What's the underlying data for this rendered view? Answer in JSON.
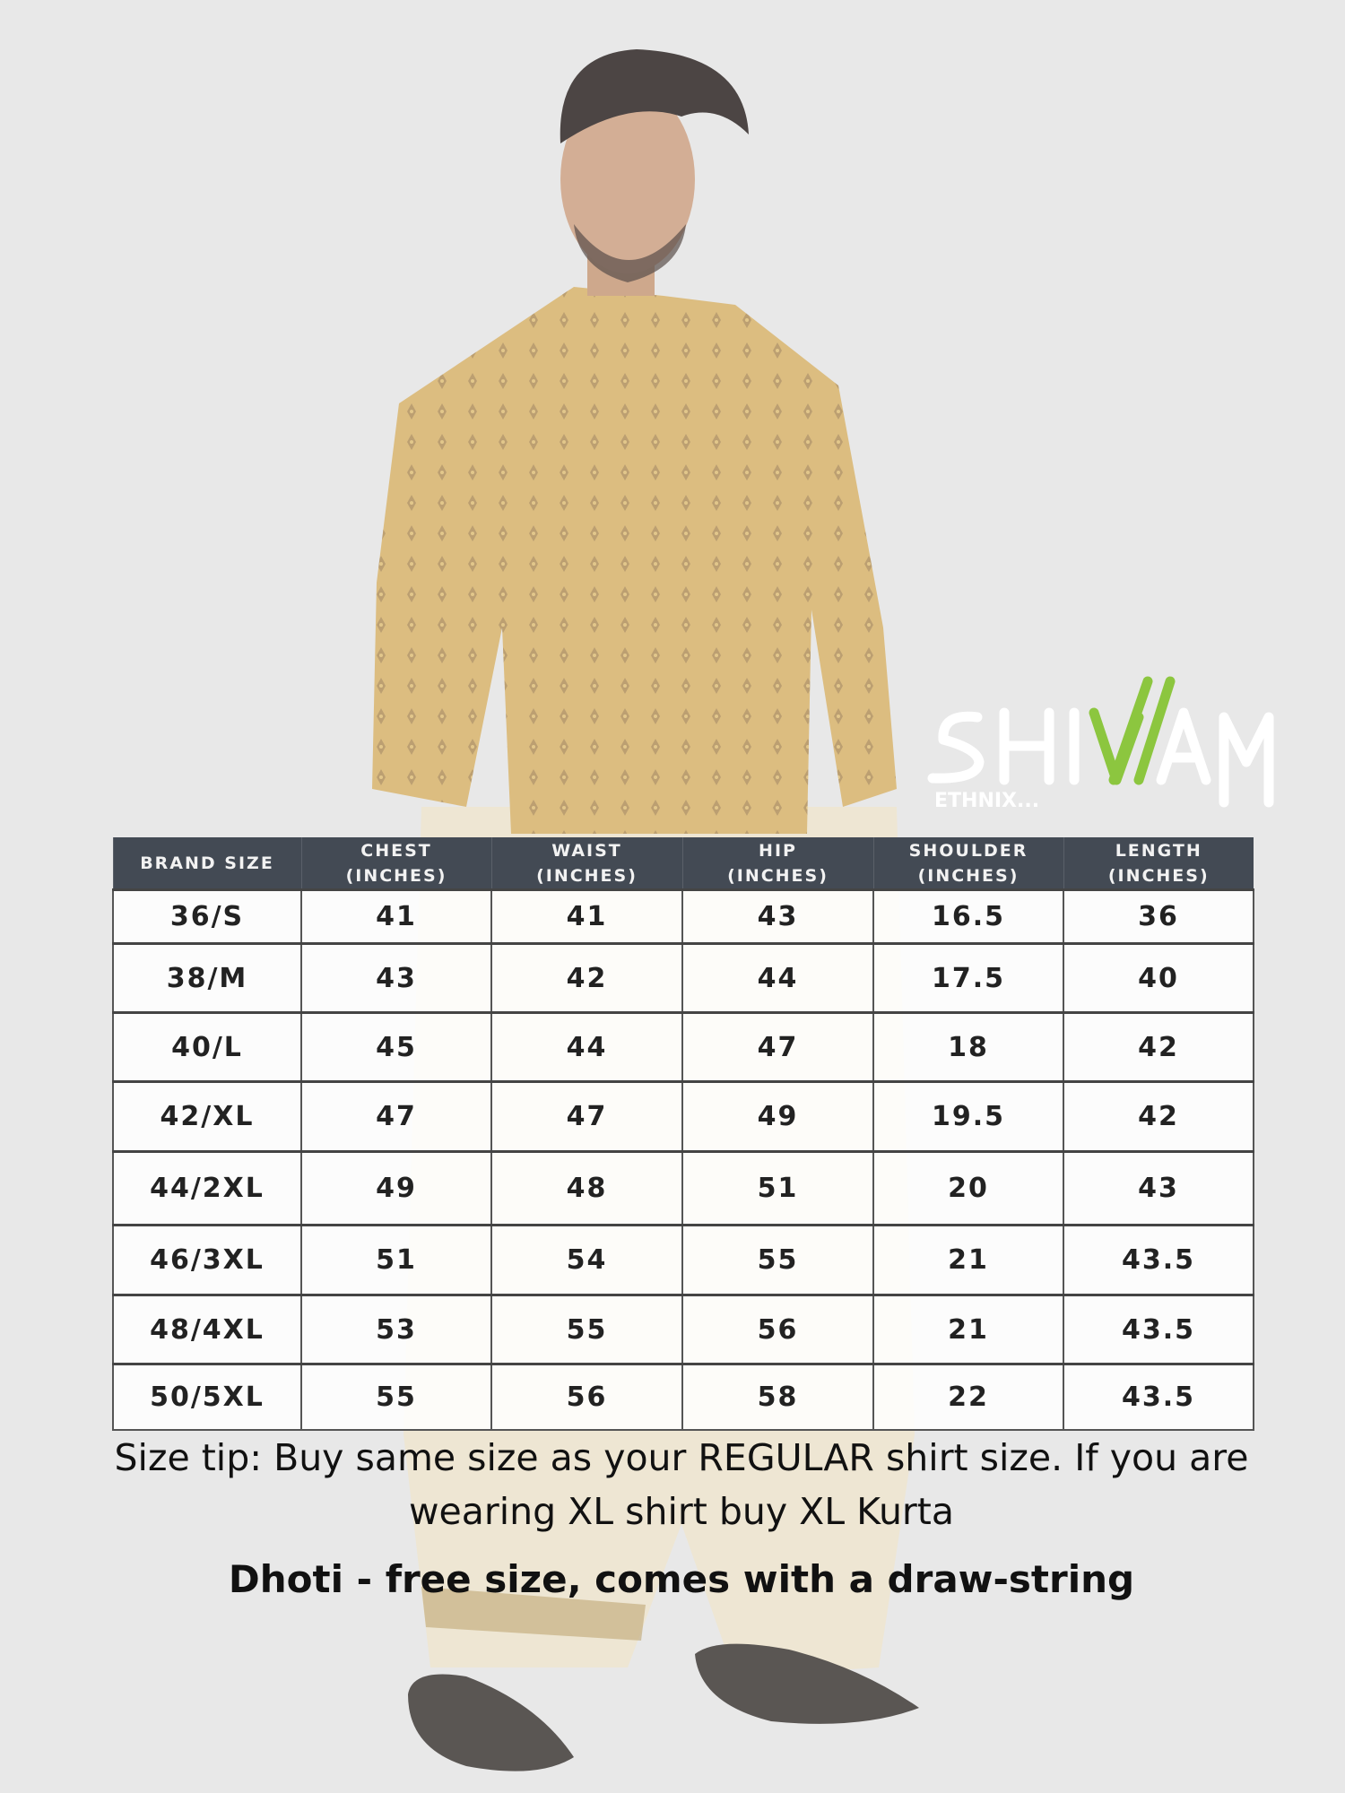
{
  "brand": {
    "name_white_left": "SHI",
    "name_green": "W",
    "name_white_right": "AM",
    "tagline": "ETHNIX...",
    "accent_color": "#8cc63f"
  },
  "table": {
    "headers": [
      {
        "line1": "BRAND SIZE",
        "line2": ""
      },
      {
        "line1": "CHEST",
        "line2": "(INCHES)"
      },
      {
        "line1": "WAIST",
        "line2": "(INCHES)"
      },
      {
        "line1": "HIP",
        "line2": "(INCHES)"
      },
      {
        "line1": "SHOULDER",
        "line2": "(INCHES)"
      },
      {
        "line1": "LENGTH",
        "line2": "(INCHES)"
      }
    ],
    "rows": [
      [
        "36/S",
        "41",
        "41",
        "43",
        "16.5",
        "36"
      ],
      [
        "38/M",
        "43",
        "42",
        "44",
        "17.5",
        "40"
      ],
      [
        "40/L",
        "45",
        "44",
        "47",
        "18",
        "42"
      ],
      [
        "42/XL",
        "47",
        "47",
        "49",
        "19.5",
        "42"
      ],
      [
        "44/2XL",
        "49",
        "48",
        "51",
        "20",
        "43"
      ],
      [
        "46/3XL",
        "51",
        "54",
        "55",
        "21",
        "43.5"
      ],
      [
        "48/4XL",
        "53",
        "55",
        "56",
        "21",
        "43.5"
      ],
      [
        "50/5XL",
        "55",
        "56",
        "58",
        "22",
        "43.5"
      ]
    ]
  },
  "size_tip": "Size tip: Buy same size as your REGULAR shirt size. If you are wearing XL shirt buy XL Kurta",
  "dhoti_note": "Dhoti - free size, comes with a draw-string",
  "colors": {
    "background": "#e8e8e8",
    "header": "#434a54",
    "kurta": "#d9b46a",
    "dhoti": "#efe6cf"
  }
}
